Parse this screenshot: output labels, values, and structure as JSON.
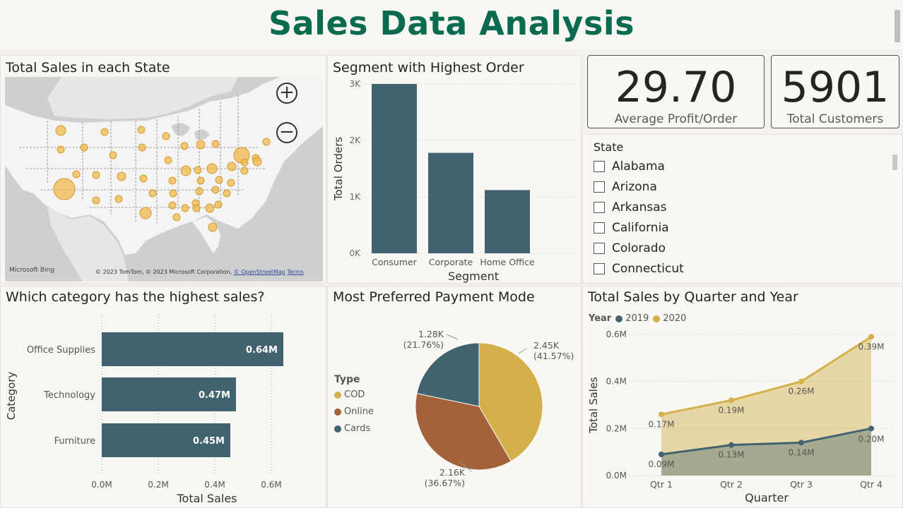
{
  "header": {
    "title": "Sales Data Analysis"
  },
  "map": {
    "title": "Total Sales in each State",
    "zoom_in": "+",
    "zoom_out": "−",
    "attribution_logo": "Microsoft Bing",
    "copyright_prefix": "© 2023 TomTom, © 2023 Microsoft Corporation,",
    "copyright_osm": "© OpenStreetMap",
    "copyright_terms": "Terms",
    "bubble_color": "#f2b84b"
  },
  "segment": {
    "title": "Segment with Highest Order",
    "chart_data": {
      "type": "bar",
      "categories": [
        "Consumer",
        "Corporate",
        "Home Office"
      ],
      "values": [
        3000,
        1780,
        1120
      ],
      "ylim": [
        0,
        3000
      ],
      "yticks": [
        "0K",
        "1K",
        "2K",
        "3K"
      ],
      "xlabel": "Segment",
      "ylabel": "Total Orders",
      "color": "#41636f"
    }
  },
  "kpi_profit": {
    "value": "29.70",
    "label": "Average Profit/Order"
  },
  "kpi_customers": {
    "value": "5901",
    "label": "Total Customers"
  },
  "state_slicer": {
    "title": "State",
    "items": [
      "Alabama",
      "Arizona",
      "Arkansas",
      "California",
      "Colorado",
      "Connecticut"
    ]
  },
  "category": {
    "title": "Which category has the highest sales?",
    "chart_data": {
      "type": "bar",
      "orientation": "horizontal",
      "categories": [
        "Office Supplies",
        "Technology",
        "Furniture"
      ],
      "values": [
        0.64,
        0.47,
        0.45
      ],
      "labels": [
        "0.64M",
        "0.47M",
        "0.45M"
      ],
      "xlim": [
        0,
        0.65
      ],
      "xticks": [
        "0.0M",
        "0.2M",
        "0.4M",
        "0.6M"
      ],
      "xlabel": "Total Sales",
      "ylabel": "Category",
      "color": "#41636f"
    }
  },
  "payment": {
    "title": "Most Preferred Payment Mode",
    "legend_title": "Type",
    "chart_data": {
      "type": "pie",
      "slices": [
        {
          "name": "COD",
          "value": 2450,
          "label_value": "2.45K",
          "label_pct": "(41.57%)",
          "color": "#d4b04a"
        },
        {
          "name": "Online",
          "value": 2160,
          "label_value": "2.16K",
          "label_pct": "(36.67%)",
          "color": "#a3623a"
        },
        {
          "name": "Cards",
          "value": 1280,
          "label_value": "1.28K",
          "label_pct": "(21.76%)",
          "color": "#41636f"
        }
      ]
    }
  },
  "quarter": {
    "title": "Total Sales by Quarter and Year",
    "legend_title": "Year",
    "chart_data": {
      "type": "area",
      "categories": [
        "Qtr 1",
        "Qtr 2",
        "Qtr 3",
        "Qtr 4"
      ],
      "series": [
        {
          "name": "2019",
          "values": [
            0.09,
            0.13,
            0.14,
            0.2
          ],
          "labels": [
            "0.09M",
            "0.13M",
            "0.14M",
            "0.20M"
          ],
          "color": "#41636f"
        },
        {
          "name": "2020",
          "values": [
            0.26,
            0.32,
            0.4,
            0.59
          ],
          "labels": [
            "0.17M",
            "0.19M",
            "0.26M",
            "0.39M"
          ],
          "color": "#d4b04a"
        }
      ],
      "ylim": [
        0,
        0.6
      ],
      "yticks": [
        "0.0M",
        "0.2M",
        "0.4M",
        "0.6M"
      ],
      "xlabel": "Quarter",
      "ylabel": "Total Sales"
    }
  }
}
